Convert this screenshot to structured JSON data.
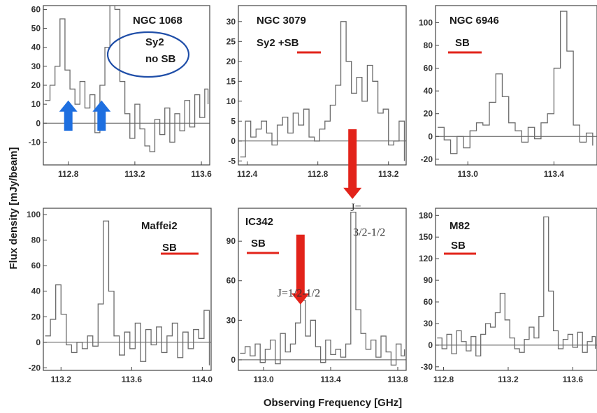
{
  "figure": {
    "xlabel": "Observing Frequency [GHz]",
    "ylabel": "Flux density [mJy/beam]"
  },
  "colors": {
    "line": "#6a6a6a",
    "baseline": "#555555",
    "red": "#e2231a",
    "blue": "#1e6fe0",
    "ellipse": "#1f4ea8"
  },
  "chart_data": [
    {
      "type": "line",
      "title": "NGC 1068",
      "tags": [
        "Sy2",
        "no SB"
      ],
      "circled": true,
      "xlim": [
        112.65,
        113.65
      ],
      "ylim": [
        -22,
        62
      ],
      "xticks": [
        112.8,
        113.2,
        113.6
      ],
      "yticks": [
        -10,
        0,
        10,
        20,
        30,
        40,
        50,
        60
      ],
      "arrows": [
        {
          "color": "blue",
          "dir": "up",
          "x": 112.8,
          "y_tail": -4,
          "y_head": 12
        },
        {
          "color": "blue",
          "dir": "up",
          "x": 113.0,
          "y_tail": -4,
          "y_head": 12
        }
      ],
      "series": [
        {
          "x": [
            112.66,
            112.69,
            112.72,
            112.75,
            112.78,
            112.81,
            112.84,
            112.87,
            112.9,
            112.93,
            112.96,
            112.99,
            113.02,
            113.05,
            113.08,
            113.11,
            113.14,
            113.17,
            113.2,
            113.23,
            113.26,
            113.29,
            113.32,
            113.35,
            113.38,
            113.41,
            113.44,
            113.47,
            113.5,
            113.53,
            113.56,
            113.59,
            113.62,
            113.64
          ],
          "y": [
            12,
            20,
            30,
            55,
            28,
            18,
            10,
            22,
            8,
            15,
            -5,
            20,
            40,
            62,
            60,
            22,
            5,
            -8,
            10,
            -3,
            -12,
            -15,
            2,
            -6,
            8,
            -10,
            5,
            -4,
            12,
            -2,
            15,
            3,
            18,
            10
          ]
        }
      ]
    },
    {
      "type": "line",
      "title": "NGC 3079",
      "tags": [
        "Sy2 +SB"
      ],
      "underline": [
        0
      ],
      "xlim": [
        112.35,
        113.3
      ],
      "ylim": [
        -6,
        34
      ],
      "xticks": [
        112.4,
        112.8,
        113.2
      ],
      "yticks": [
        -5,
        0,
        5,
        10,
        15,
        20,
        25,
        30
      ],
      "arrows": [],
      "series": [
        {
          "x": [
            112.36,
            112.39,
            112.42,
            112.45,
            112.48,
            112.51,
            112.54,
            112.57,
            112.6,
            112.63,
            112.66,
            112.69,
            112.72,
            112.75,
            112.78,
            112.81,
            112.84,
            112.87,
            112.9,
            112.93,
            112.96,
            112.99,
            113.02,
            113.05,
            113.08,
            113.11,
            113.14,
            113.17,
            113.2,
            113.23,
            113.26,
            113.29
          ],
          "y": [
            -4,
            5,
            1,
            3,
            5,
            2,
            -1,
            4,
            6,
            2,
            7,
            4,
            8,
            1,
            0,
            3,
            5,
            9,
            14,
            30,
            20,
            12,
            16,
            10,
            19,
            15,
            7,
            8,
            -1,
            0,
            5,
            -5
          ]
        }
      ]
    },
    {
      "type": "line",
      "title": "NGC 6946",
      "tags": [
        "SB"
      ],
      "underline": [
        0
      ],
      "xlim": [
        112.85,
        113.6
      ],
      "ylim": [
        -25,
        115
      ],
      "xticks": [
        113.0,
        113.4
      ],
      "yticks": [
        -20,
        0,
        20,
        40,
        60,
        80,
        100
      ],
      "arrows": [],
      "series": [
        {
          "x": [
            112.86,
            112.89,
            112.92,
            112.95,
            112.98,
            113.01,
            113.04,
            113.07,
            113.1,
            113.13,
            113.16,
            113.19,
            113.22,
            113.25,
            113.28,
            113.31,
            113.34,
            113.37,
            113.4,
            113.43,
            113.46,
            113.49,
            113.52,
            113.55,
            113.58
          ],
          "y": [
            8,
            -3,
            -15,
            0,
            -10,
            5,
            12,
            10,
            30,
            55,
            35,
            12,
            5,
            -5,
            8,
            -2,
            12,
            20,
            60,
            110,
            75,
            10,
            -5,
            3,
            -8
          ]
        }
      ]
    },
    {
      "type": "line",
      "title": "Maffei2",
      "tags": [
        "SB"
      ],
      "underline": [
        0
      ],
      "xlim": [
        113.1,
        114.05
      ],
      "ylim": [
        -22,
        105
      ],
      "xticks": [
        113.2,
        113.6,
        114.0
      ],
      "yticks": [
        -20,
        0,
        20,
        40,
        60,
        80,
        100
      ],
      "arrows": [],
      "series": [
        {
          "x": [
            113.11,
            113.14,
            113.17,
            113.2,
            113.23,
            113.26,
            113.29,
            113.32,
            113.35,
            113.38,
            113.41,
            113.44,
            113.47,
            113.5,
            113.53,
            113.56,
            113.59,
            113.62,
            113.65,
            113.68,
            113.71,
            113.74,
            113.77,
            113.8,
            113.83,
            113.86,
            113.89,
            113.92,
            113.95,
            113.98,
            114.01,
            114.04
          ],
          "y": [
            5,
            18,
            45,
            22,
            -2,
            -8,
            0,
            -5,
            5,
            -3,
            30,
            95,
            40,
            5,
            -10,
            8,
            -5,
            15,
            -15,
            10,
            -2,
            12,
            -8,
            5,
            15,
            -12,
            8,
            -5,
            10,
            3,
            25,
            -18
          ]
        }
      ]
    },
    {
      "type": "line",
      "title": "IC342",
      "tags": [
        "SB"
      ],
      "underline": [
        0
      ],
      "xlim": [
        112.85,
        113.85
      ],
      "ylim": [
        -8,
        115
      ],
      "xticks": [
        113.0,
        113.4,
        113.8
      ],
      "yticks": [
        0,
        30,
        60,
        90
      ],
      "arrows": [
        {
          "color": "red",
          "dir": "down",
          "x": 113.22,
          "y_tail": 95,
          "y_head": 42
        },
        {
          "color": "red",
          "dir": "down",
          "x": 113.53,
          "y_tail": 175,
          "y_head": 122
        }
      ],
      "annotations": [
        {
          "text": "J=1/2-1/2",
          "x": 113.21,
          "y": 48
        },
        {
          "text": "J=",
          "x": 113.55,
          "y": 113
        },
        {
          "text": "3/2-1/2",
          "x": 113.63,
          "y": 94
        }
      ],
      "series": [
        {
          "x": [
            112.86,
            112.89,
            112.92,
            112.95,
            112.98,
            113.01,
            113.04,
            113.07,
            113.1,
            113.13,
            113.16,
            113.19,
            113.22,
            113.25,
            113.28,
            113.31,
            113.34,
            113.37,
            113.4,
            113.43,
            113.46,
            113.49,
            113.52,
            113.55,
            113.58,
            113.61,
            113.64,
            113.67,
            113.7,
            113.73,
            113.76,
            113.79,
            113.82,
            113.84
          ],
          "y": [
            5,
            10,
            3,
            12,
            -2,
            8,
            15,
            -3,
            20,
            6,
            12,
            28,
            45,
            18,
            30,
            10,
            -2,
            15,
            4,
            8,
            2,
            12,
            112,
            38,
            20,
            8,
            15,
            2,
            18,
            6,
            -4,
            12,
            3,
            8
          ]
        }
      ]
    },
    {
      "type": "line",
      "title": "M82",
      "tags": [
        "SB"
      ],
      "underline": [
        0
      ],
      "xlim": [
        112.75,
        113.75
      ],
      "ylim": [
        -35,
        190
      ],
      "xticks": [
        112.8,
        113.2,
        113.6
      ],
      "yticks": [
        -30,
        0,
        30,
        60,
        90,
        120,
        150,
        180
      ],
      "arrows": [],
      "series": [
        {
          "x": [
            112.76,
            112.79,
            112.82,
            112.85,
            112.88,
            112.91,
            112.94,
            112.97,
            113.0,
            113.03,
            113.06,
            113.09,
            113.12,
            113.15,
            113.18,
            113.21,
            113.24,
            113.27,
            113.3,
            113.33,
            113.36,
            113.39,
            113.42,
            113.45,
            113.48,
            113.51,
            113.54,
            113.57,
            113.6,
            113.63,
            113.66,
            113.69,
            113.72,
            113.74
          ],
          "y": [
            10,
            -5,
            15,
            -12,
            20,
            5,
            -8,
            12,
            -15,
            15,
            30,
            25,
            45,
            72,
            35,
            10,
            -5,
            -10,
            8,
            25,
            10,
            40,
            178,
            75,
            20,
            -5,
            8,
            15,
            -3,
            18,
            -10,
            5,
            12,
            -5
          ]
        }
      ]
    }
  ]
}
